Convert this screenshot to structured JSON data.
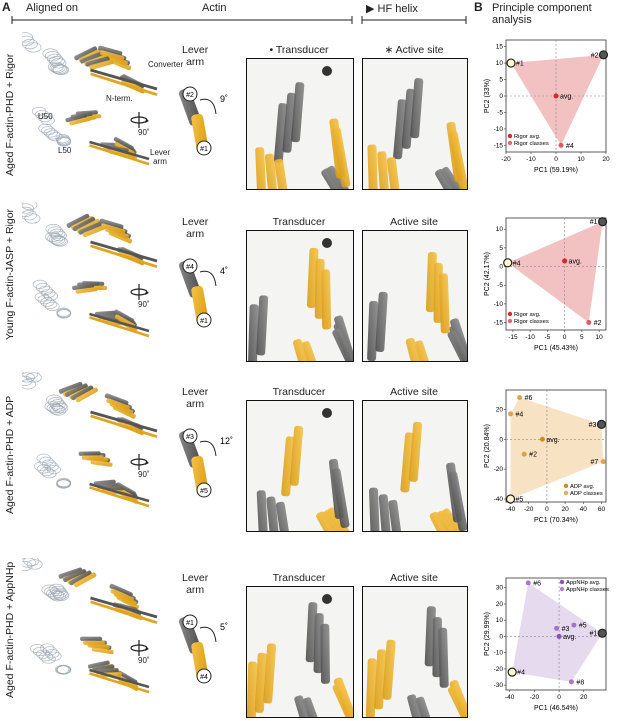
{
  "panel_a": {
    "letter": "A",
    "aligned_on": "Aligned on",
    "actin": "Actin",
    "hf_helix": "▶ HF helix"
  },
  "panel_b": {
    "letter": "B",
    "title": "Principle component analysis"
  },
  "labels": {
    "converter": "Converter",
    "n_term": "N-term.",
    "u50": "U50",
    "l50": "L50",
    "lever_arm_small": "Lever\narm",
    "rot90": "90˚"
  },
  "rows": [
    {
      "label": "Aged F-actin-PHD + Rigor",
      "lever_title": "Lever arm",
      "transducer_title": "• Transducer",
      "active_title": "∗ Active site",
      "angle": "9˚",
      "lever_markers": [
        "#2",
        "#1"
      ]
    },
    {
      "label": "Young F-actin-JASP + Rigor",
      "lever_title": "Lever arm",
      "transducer_title": "Transducer",
      "active_title": "Active site",
      "angle": "4˚",
      "lever_markers": [
        "#4",
        "#1"
      ]
    },
    {
      "label": "Aged F-actin-PHD + ADP",
      "lever_title": "Lever arm",
      "transducer_title": "Transducer",
      "active_title": "Active site",
      "angle": "12˚",
      "lever_markers": [
        "#3",
        "#5"
      ]
    },
    {
      "label": "Aged F-actin-PHD + AppNHp",
      "lever_title": "Lever arm",
      "transducer_title": "Transducer",
      "active_title": "Active site",
      "angle": "5˚",
      "lever_markers": [
        "#1",
        "#4"
      ]
    }
  ],
  "chart_data": [
    {
      "type": "scatter",
      "xlabel": "PC1 (59.19%)",
      "ylabel": "PC2 (33%)",
      "xlim": [
        -20,
        20
      ],
      "ylim": [
        -17,
        17
      ],
      "xticks": [
        -20,
        -10,
        0,
        10,
        20
      ],
      "yticks": [
        -15,
        -10,
        -5,
        0,
        5,
        10,
        15
      ],
      "hull_color": "#f0b7b9",
      "point_color": "#d9262f",
      "legend": [
        "Rigor avg.",
        "Rigor classes"
      ],
      "legend_position": "bottom-left",
      "points": [
        {
          "label": "#1",
          "x": -18,
          "y": 10,
          "marker": "open"
        },
        {
          "label": "#2",
          "x": 19,
          "y": 12.5,
          "marker": "dark"
        },
        {
          "label": "#4",
          "x": 2,
          "y": -15,
          "marker": "class"
        },
        {
          "label": "avg.",
          "x": 0,
          "y": 0,
          "marker": "avg"
        }
      ]
    },
    {
      "type": "scatter",
      "xlabel": "PC1 (45.43%)",
      "ylabel": "PC2 (42.17%)",
      "xlim": [
        -17,
        12
      ],
      "ylim": [
        -17,
        13
      ],
      "xticks": [
        -15,
        -10,
        -5,
        0,
        5,
        10
      ],
      "yticks": [
        -15,
        -10,
        -5,
        0,
        5,
        10
      ],
      "hull_color": "#f0b7b9",
      "point_color": "#d9262f",
      "legend": [
        "Rigor avg.",
        "Rigor classes"
      ],
      "legend_position": "bottom-left",
      "points": [
        {
          "label": "#1",
          "x": 11,
          "y": 12,
          "marker": "dark"
        },
        {
          "label": "#4",
          "x": -16.5,
          "y": 1,
          "marker": "open"
        },
        {
          "label": "#2",
          "x": 7,
          "y": -15,
          "marker": "class"
        },
        {
          "label": "avg.",
          "x": 0,
          "y": 1.5,
          "marker": "avg"
        }
      ]
    },
    {
      "type": "scatter",
      "xlabel": "PC1 (70.34%)",
      "ylabel": "PC2 (20.84%)",
      "xlim": [
        -45,
        65
      ],
      "ylim": [
        -42,
        33
      ],
      "xticks": [
        -40,
        -20,
        0,
        20,
        40,
        60
      ],
      "yticks": [
        -40,
        -20,
        0,
        20
      ],
      "hull_color": "#f6ddb8",
      "point_color": "#d08a21",
      "legend": [
        "ADP avg.",
        "ADP classes"
      ],
      "legend_position": "bottom-right",
      "points": [
        {
          "label": "#6",
          "x": -30,
          "y": 28,
          "marker": "class"
        },
        {
          "label": "#4",
          "x": -40,
          "y": 17,
          "marker": "class"
        },
        {
          "label": "#3",
          "x": 60,
          "y": 10,
          "marker": "dark"
        },
        {
          "label": "avg.",
          "x": -5,
          "y": 0,
          "marker": "avg"
        },
        {
          "label": "#2",
          "x": -25,
          "y": -10,
          "marker": "class"
        },
        {
          "label": "#7",
          "x": 62,
          "y": -15,
          "marker": "class"
        },
        {
          "label": "#5",
          "x": -40,
          "y": -40,
          "marker": "open"
        }
      ]
    },
    {
      "type": "scatter",
      "xlabel": "PC1 (46.54%)",
      "ylabel": "PC2 (29.99%)",
      "xlim": [
        -43,
        38
      ],
      "ylim": [
        -33,
        36
      ],
      "xticks": [
        -40,
        -20,
        0,
        20
      ],
      "yticks": [
        -30,
        -20,
        -10,
        0,
        10,
        20,
        30
      ],
      "hull_color": "#e2d3ec",
      "point_color": "#8f4fb8",
      "legend": [
        "AppNHp avg.",
        "AppNHp classes"
      ],
      "legend_position": "top-right",
      "points": [
        {
          "label": "#6",
          "x": -25,
          "y": 33,
          "marker": "class"
        },
        {
          "label": "#5",
          "x": 12,
          "y": 7,
          "marker": "class"
        },
        {
          "label": "#3",
          "x": -2,
          "y": 5,
          "marker": "class"
        },
        {
          "label": "#1",
          "x": 35,
          "y": 2,
          "marker": "dark"
        },
        {
          "label": "avg.",
          "x": 0,
          "y": 0,
          "marker": "avg"
        },
        {
          "label": "#8",
          "x": 10,
          "y": -28,
          "marker": "class"
        },
        {
          "label": "#4",
          "x": -38,
          "y": -22,
          "marker": "open"
        }
      ]
    }
  ]
}
